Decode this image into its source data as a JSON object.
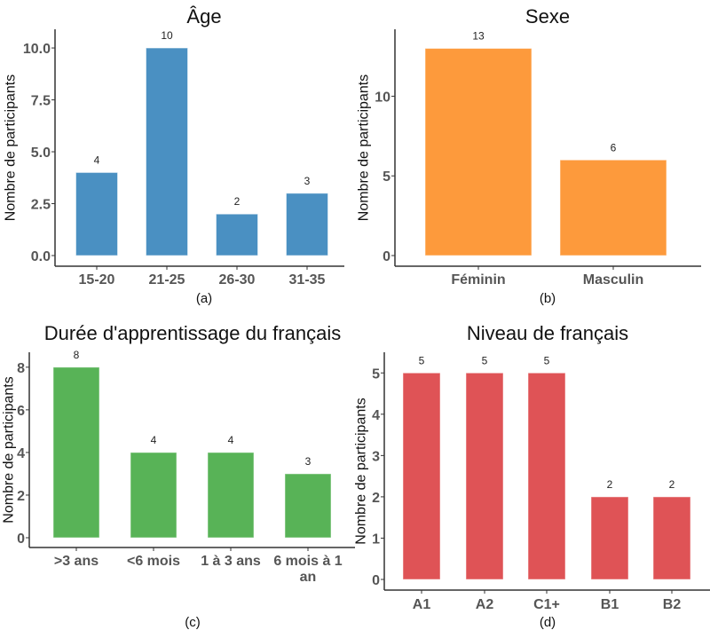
{
  "chart_data": [
    {
      "type": "bar",
      "title": "Âge",
      "caption": "(a)",
      "ylabel": "Nombre de participants",
      "xlabel": "",
      "categories": [
        "15-20",
        "21-25",
        "26-30",
        "31-35"
      ],
      "values": [
        4,
        10,
        2,
        3
      ],
      "yticks": [
        "0.0",
        "2.5",
        "5.0",
        "7.5",
        "10.0"
      ],
      "ylim": [
        0,
        10.9
      ],
      "color": "#4a90c2",
      "grid": false
    },
    {
      "type": "bar",
      "title": "Sexe",
      "caption": "(b)",
      "ylabel": "Nombre de participants",
      "xlabel": "",
      "categories": [
        "Féminin",
        "Masculin"
      ],
      "values": [
        13,
        6
      ],
      "yticks": [
        "0",
        "5",
        "10"
      ],
      "ylim": [
        0,
        14.2
      ],
      "color": "#fd9a3c",
      "grid": false
    },
    {
      "type": "bar",
      "title": "Durée d'apprentissage du français",
      "caption": "(c)",
      "ylabel": "Nombre de participants",
      "xlabel": "",
      "categories": [
        ">3 ans",
        "<6 mois",
        "1 à 3 ans",
        "6 mois à 1 an"
      ],
      "values": [
        8,
        4,
        4,
        3
      ],
      "yticks": [
        "0",
        "2",
        "4",
        "6",
        "8"
      ],
      "ylim": [
        0,
        8.7
      ],
      "color": "#58b357",
      "grid": false
    },
    {
      "type": "bar",
      "title": "Niveau de français",
      "caption": "(d)",
      "ylabel": "Nombre de participants",
      "xlabel": "",
      "categories": [
        "A1",
        "A2",
        "C1+",
        "B1",
        "B2"
      ],
      "values": [
        5,
        5,
        5,
        2,
        2
      ],
      "yticks": [
        "0",
        "1",
        "2",
        "3",
        "4",
        "5"
      ],
      "ylim": [
        0,
        5.5
      ],
      "color": "#df5356",
      "grid": false
    }
  ]
}
